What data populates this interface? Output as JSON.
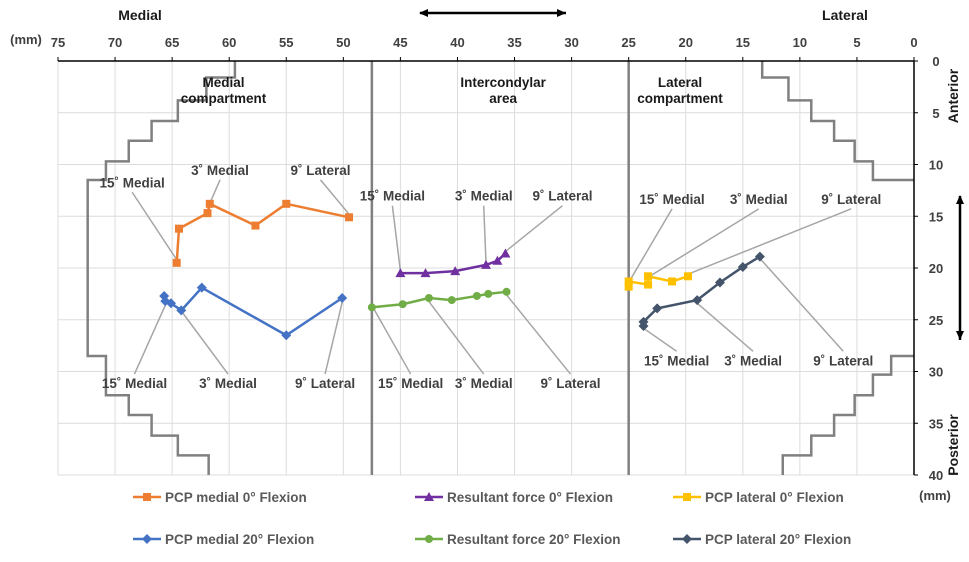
{
  "chart_data": {
    "type": "scatter",
    "header_left": "Medial",
    "header_right": "Lateral",
    "x_unit": "(mm)",
    "y_unit": "(mm)",
    "y_label_top": "Anterior",
    "y_label_bottom": "Posterior",
    "xlim": [
      75,
      0
    ],
    "ylim": [
      0,
      40
    ],
    "x_ticks": [
      75,
      70,
      65,
      60,
      55,
      50,
      45,
      40,
      35,
      30,
      25,
      20,
      15,
      10,
      5,
      0
    ],
    "y_ticks": [
      0,
      5,
      10,
      15,
      20,
      25,
      30,
      35,
      40
    ],
    "grid": true,
    "legend_position": "bottom",
    "zones": [
      {
        "label": "Medial compartment",
        "line1": "Medial",
        "line2": "compartment",
        "x": 60.5,
        "y": 2.7
      },
      {
        "label": "Intercondylar area",
        "line1": "Intercondylar",
        "line2": "area",
        "x": 36,
        "y": 2.7
      },
      {
        "label": "Lateral compartment",
        "line1": "Lateral",
        "line2": "compartment",
        "x": 20.5,
        "y": 2.7
      }
    ],
    "compartment_boundaries_x": [
      47.5,
      25
    ],
    "tibia_outline_medial": [
      [
        59.5,
        0
      ],
      [
        59.5,
        1.6
      ],
      [
        62,
        1.6
      ],
      [
        62,
        3.8
      ],
      [
        64.5,
        3.8
      ],
      [
        64.5,
        5.8
      ],
      [
        66.8,
        5.8
      ],
      [
        66.8,
        7.7
      ],
      [
        68.8,
        7.7
      ],
      [
        68.8,
        9.7
      ],
      [
        70.8,
        9.7
      ],
      [
        70.8,
        11.5
      ],
      [
        72.4,
        11.5
      ],
      [
        72.4,
        28.5
      ],
      [
        70.8,
        28.5
      ],
      [
        70.8,
        32.3
      ],
      [
        68.8,
        32.3
      ],
      [
        68.8,
        34.2
      ],
      [
        66.8,
        34.2
      ],
      [
        66.8,
        36.2
      ],
      [
        64.5,
        36.2
      ],
      [
        64.5,
        38.1
      ],
      [
        61.8,
        38.1
      ],
      [
        61.8,
        40
      ]
    ],
    "tibia_outline_lateral": [
      [
        13.3,
        0
      ],
      [
        13.3,
        1.6
      ],
      [
        11,
        1.6
      ],
      [
        11,
        3.8
      ],
      [
        9,
        3.8
      ],
      [
        9,
        5.8
      ],
      [
        7,
        5.8
      ],
      [
        7,
        7.7
      ],
      [
        5.2,
        7.7
      ],
      [
        5.2,
        9.7
      ],
      [
        3.6,
        9.7
      ],
      [
        3.6,
        11.5
      ],
      [
        0,
        11.5
      ]
    ],
    "tibia_outline_lateral_posterior": [
      [
        0,
        28.5
      ],
      [
        2,
        28.5
      ],
      [
        2,
        30.3
      ],
      [
        3.6,
        30.3
      ],
      [
        3.6,
        32.3
      ],
      [
        5.2,
        32.3
      ],
      [
        5.2,
        34.2
      ],
      [
        7,
        34.2
      ],
      [
        7,
        36.2
      ],
      [
        9,
        36.2
      ],
      [
        9,
        38.1
      ],
      [
        11.5,
        38.1
      ],
      [
        11.5,
        40
      ]
    ],
    "series": [
      {
        "name": "PCP medial 0° Flexion",
        "color": "#ED7D31",
        "marker": "square",
        "points": [
          [
            64.6,
            19.5
          ],
          [
            64.4,
            16.2
          ],
          [
            61.9,
            14.7
          ],
          [
            61.7,
            13.8
          ],
          [
            57.7,
            15.9
          ],
          [
            55,
            13.8
          ],
          [
            49.5,
            15.1
          ]
        ]
      },
      {
        "name": "Resultant force 0° Flexion",
        "color": "#7030A0",
        "marker": "triangle",
        "points": [
          [
            45,
            20.5
          ],
          [
            42.8,
            20.5
          ],
          [
            40.2,
            20.3
          ],
          [
            37.5,
            19.7
          ],
          [
            36.5,
            19.3
          ],
          [
            35.8,
            18.6
          ]
        ]
      },
      {
        "name": "PCP lateral 0° Flexion",
        "color": "#FFC000",
        "marker": "square",
        "points": [
          [
            25,
            21.8
          ],
          [
            25,
            21.3
          ],
          [
            23.3,
            21.6
          ],
          [
            23.3,
            20.8
          ],
          [
            21.2,
            21.3
          ],
          [
            19.8,
            20.8
          ]
        ]
      },
      {
        "name": "PCP medial 20° Flexion",
        "color": "#4472C4",
        "marker": "diamond",
        "points": [
          [
            65.7,
            22.7
          ],
          [
            65.6,
            23.2
          ],
          [
            65.1,
            23.4
          ],
          [
            64.2,
            24.1
          ],
          [
            62.4,
            21.9
          ],
          [
            55,
            26.5
          ],
          [
            50.1,
            22.9
          ]
        ]
      },
      {
        "name": "Resultant force 20° Flexion",
        "color": "#70AD47",
        "marker": "circle",
        "points": [
          [
            47.5,
            23.8
          ],
          [
            44.8,
            23.5
          ],
          [
            42.5,
            22.9
          ],
          [
            40.5,
            23.1
          ],
          [
            38.3,
            22.7
          ],
          [
            37.3,
            22.5
          ],
          [
            35.7,
            22.3
          ]
        ]
      },
      {
        "name": "PCP lateral 20° Flexion",
        "color": "#44546A",
        "marker": "diamond",
        "points": [
          [
            23.7,
            25.6
          ],
          [
            23.7,
            25.2
          ],
          [
            22.5,
            23.9
          ],
          [
            19,
            23.1
          ],
          [
            17,
            21.4
          ],
          [
            15,
            19.9
          ],
          [
            13.5,
            18.9
          ]
        ]
      }
    ],
    "annotations": [
      {
        "text": "15˚ Medial",
        "x": 68.5,
        "y": 12.2,
        "tx": 64.6,
        "ty": 19.2
      },
      {
        "text": "3˚ Medial",
        "x": 60.8,
        "y": 11.0,
        "tx": 61.8,
        "ty": 14.0
      },
      {
        "text": "9˚ Lateral",
        "x": 52,
        "y": 11.0,
        "tx": 49.5,
        "ty": 14.8
      },
      {
        "text": "15˚ Medial",
        "x": 68.3,
        "y": 31.6,
        "tx": 65.6,
        "ty": 23.6
      },
      {
        "text": "3˚ Medial",
        "x": 60.1,
        "y": 31.6,
        "tx": 64.1,
        "ty": 24.3
      },
      {
        "text": "9˚ Lateral",
        "x": 51.6,
        "y": 31.6,
        "tx": 50.1,
        "ty": 23.3
      },
      {
        "text": "15˚ Medial",
        "x": 45.7,
        "y": 13.5,
        "tx": 45,
        "ty": 20.3
      },
      {
        "text": "3˚ Medial",
        "x": 37.7,
        "y": 13.5,
        "tx": 37.5,
        "ty": 19.5
      },
      {
        "text": "9˚ Lateral",
        "x": 30.8,
        "y": 13.5,
        "tx": 35.9,
        "ty": 18.5
      },
      {
        "text": "15˚ Medial",
        "x": 44.1,
        "y": 31.6,
        "tx": 47.3,
        "ty": 24.0
      },
      {
        "text": "3˚ Medial",
        "x": 37.7,
        "y": 31.6,
        "tx": 42.6,
        "ty": 23.1
      },
      {
        "text": "9˚ Lateral",
        "x": 30.1,
        "y": 31.6,
        "tx": 35.7,
        "ty": 22.6
      },
      {
        "text": "15˚ Medial",
        "x": 21.2,
        "y": 13.8,
        "tx": 25,
        "ty": 21.4
      },
      {
        "text": "3˚ Medial",
        "x": 13.6,
        "y": 13.8,
        "tx": 23.3,
        "ty": 20.9
      },
      {
        "text": "9˚ Lateral",
        "x": 5.5,
        "y": 13.8,
        "tx": 19.8,
        "ty": 20.6
      },
      {
        "text": "15˚ Medial",
        "x": 20.8,
        "y": 29.4,
        "tx": 23.6,
        "ty": 25.9
      },
      {
        "text": "3˚ Medial",
        "x": 14.1,
        "y": 29.4,
        "tx": 19,
        "ty": 23.4
      },
      {
        "text": "9˚ Lateral",
        "x": 6.2,
        "y": 29.4,
        "tx": 13.4,
        "ty": 19.2
      }
    ]
  }
}
